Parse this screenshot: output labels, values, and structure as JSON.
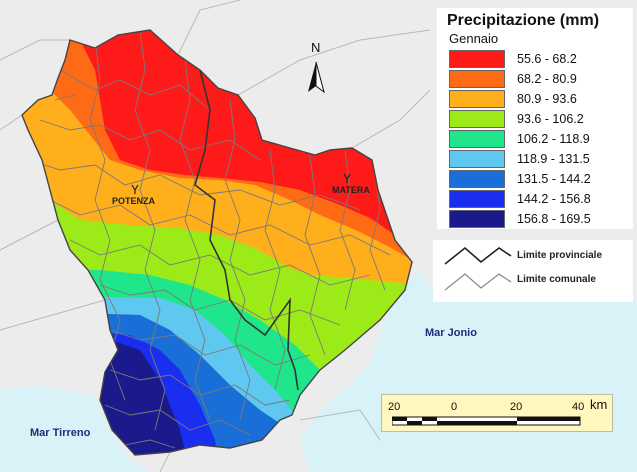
{
  "legend": {
    "title": "Precipitazione (mm)",
    "subtitle": "Gennaio",
    "classes": [
      {
        "range": "55.6 - 68.2",
        "color": "#ff1a1a"
      },
      {
        "range": "68.2 - 80.9",
        "color": "#ff6a14"
      },
      {
        "range": "80.9 - 93.6",
        "color": "#ffae1c"
      },
      {
        "range": "93.6 - 106.2",
        "color": "#9cea18"
      },
      {
        "range": "106.2 - 118.9",
        "color": "#1fe68a"
      },
      {
        "range": "118.9 - 131.5",
        "color": "#5fc8f0"
      },
      {
        "range": "131.5 - 144.2",
        "color": "#1a6ed8"
      },
      {
        "range": "144.2 - 156.8",
        "color": "#1a2ef0"
      },
      {
        "range": "156.8 - 169.5",
        "color": "#1a1a8c"
      }
    ]
  },
  "boundaries": {
    "provincial": "Limite provinciale",
    "municipal": "Limite comunale"
  },
  "north": "N",
  "cities": {
    "potenza": "POTENZA",
    "matera": "MATERA"
  },
  "seas": {
    "ionio": "Mar Jonio",
    "tirreno": "Mar Tirreno"
  },
  "scale": {
    "ticks": [
      "20",
      "0",
      "20",
      "40"
    ],
    "unit": "km"
  },
  "colors": {
    "sea": "#d8f2f8",
    "land_outside": "#ececec"
  }
}
